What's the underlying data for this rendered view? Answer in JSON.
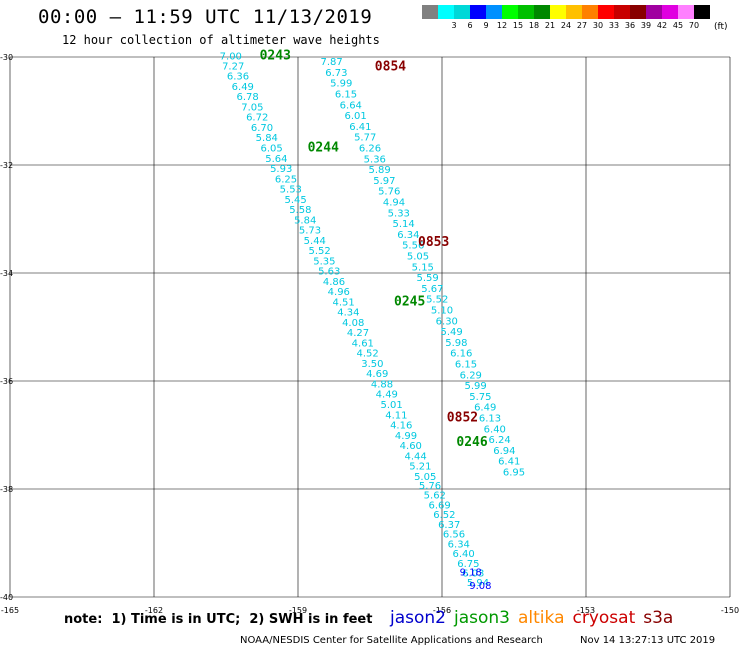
{
  "header": {
    "title": "00:00 – 11:59 UTC 11/13/2019",
    "subtitle": "12 hour collection of altimeter wave heights"
  },
  "scale": {
    "unit": "(ft)",
    "bins": [
      {
        "color": "#808080",
        "label": ""
      },
      {
        "color": "#00ffff",
        "label": "3"
      },
      {
        "color": "#00d8d8",
        "label": "6"
      },
      {
        "color": "#0000ff",
        "label": "9"
      },
      {
        "color": "#0090ff",
        "label": "12"
      },
      {
        "color": "#00ff00",
        "label": "15"
      },
      {
        "color": "#00c000",
        "label": "18"
      },
      {
        "color": "#008800",
        "label": "21"
      },
      {
        "color": "#ffff00",
        "label": "24"
      },
      {
        "color": "#ffc000",
        "label": "27"
      },
      {
        "color": "#ff8000",
        "label": "30"
      },
      {
        "color": "#ff0000",
        "label": "33"
      },
      {
        "color": "#c80000",
        "label": "36"
      },
      {
        "color": "#880000",
        "label": "39"
      },
      {
        "color": "#a000a0",
        "label": "42"
      },
      {
        "color": "#e000e0",
        "label": "45"
      },
      {
        "color": "#ff80ff",
        "label": "70"
      },
      {
        "color": "#000000",
        "label": ""
      }
    ]
  },
  "note": "note:  1) Time is in UTC;  2) SWH is in feet",
  "satellites": [
    {
      "name": "jason2",
      "color": "#0000cc"
    },
    {
      "name": "jason3",
      "color": "#009900"
    },
    {
      "name": "altika",
      "color": "#ff8800"
    },
    {
      "name": "cryosat",
      "color": "#cc0000"
    },
    {
      "name": "s3a",
      "color": "#880000"
    }
  ],
  "footer": {
    "credit": "NOAA/NESDIS Center for Satellite Applications and Research",
    "timestamp": "Nov 14 13:27:13 UTC 2019"
  },
  "chart_data": {
    "type": "scatter",
    "xlim": [
      -165,
      -150
    ],
    "ylim": [
      -40,
      -30
    ],
    "xticks": [
      "-165",
      "-162",
      "-159",
      "-156",
      "-153",
      "-150"
    ],
    "yticks": [
      "-30",
      "-32",
      "-34",
      "-36",
      "-38",
      "-40"
    ],
    "grid": true,
    "series": [
      {
        "name": "jason3",
        "color": "#00c8e0",
        "points": [
          {
            "lon": -160.4,
            "lat": -30.05,
            "v": "7.00"
          },
          {
            "lon": -160.35,
            "lat": -30.23,
            "v": "7.27"
          },
          {
            "lon": -160.25,
            "lat": -30.42,
            "v": "6.36"
          },
          {
            "lon": -160.15,
            "lat": -30.61,
            "v": "6.49"
          },
          {
            "lon": -160.05,
            "lat": -30.8,
            "v": "6.78"
          },
          {
            "lon": -159.95,
            "lat": -30.99,
            "v": "7.05"
          },
          {
            "lon": -159.85,
            "lat": -31.18,
            "v": "6.72"
          },
          {
            "lon": -159.75,
            "lat": -31.37,
            "v": "6.70"
          },
          {
            "lon": -159.65,
            "lat": -31.56,
            "v": "5.84"
          },
          {
            "lon": -159.55,
            "lat": -31.75,
            "v": "6.05"
          },
          {
            "lon": -159.45,
            "lat": -31.94,
            "v": "5.64"
          },
          {
            "lon": -159.35,
            "lat": -32.13,
            "v": "5.93"
          },
          {
            "lon": -159.25,
            "lat": -32.32,
            "v": "6.25"
          },
          {
            "lon": -159.15,
            "lat": -32.51,
            "v": "5.53"
          },
          {
            "lon": -159.05,
            "lat": -32.7,
            "v": "5.45"
          },
          {
            "lon": -158.95,
            "lat": -32.89,
            "v": "5.58"
          },
          {
            "lon": -158.85,
            "lat": -33.08,
            "v": "5.84"
          },
          {
            "lon": -158.75,
            "lat": -33.27,
            "v": "5.73"
          },
          {
            "lon": -158.65,
            "lat": -33.46,
            "v": "5.44"
          },
          {
            "lon": -158.55,
            "lat": -33.65,
            "v": "5.52"
          },
          {
            "lon": -158.45,
            "lat": -33.84,
            "v": "5.35"
          },
          {
            "lon": -158.35,
            "lat": -34.03,
            "v": "5.63"
          },
          {
            "lon": -158.25,
            "lat": -34.22,
            "v": "4.86"
          },
          {
            "lon": -158.15,
            "lat": -34.41,
            "v": "4.96"
          },
          {
            "lon": -158.05,
            "lat": -34.6,
            "v": "4.51"
          },
          {
            "lon": -157.95,
            "lat": -34.79,
            "v": "4.34"
          },
          {
            "lon": -157.85,
            "lat": -34.98,
            "v": "4.08"
          },
          {
            "lon": -157.75,
            "lat": -35.17,
            "v": "4.27"
          },
          {
            "lon": -157.65,
            "lat": -35.36,
            "v": "4.61"
          },
          {
            "lon": -157.55,
            "lat": -35.55,
            "v": "4.52"
          },
          {
            "lon": -157.45,
            "lat": -35.74,
            "v": "3.50"
          },
          {
            "lon": -157.35,
            "lat": -35.93,
            "v": "4.69"
          },
          {
            "lon": -157.25,
            "lat": -36.12,
            "v": "4.88"
          },
          {
            "lon": -157.15,
            "lat": -36.31,
            "v": "4.49"
          },
          {
            "lon": -157.05,
            "lat": -36.5,
            "v": "5.01"
          },
          {
            "lon": -156.95,
            "lat": -36.69,
            "v": "4.11"
          },
          {
            "lon": -156.85,
            "lat": -36.88,
            "v": "4.16"
          },
          {
            "lon": -156.75,
            "lat": -37.07,
            "v": "4.99"
          },
          {
            "lon": -156.65,
            "lat": -37.26,
            "v": "4.60"
          },
          {
            "lon": -156.55,
            "lat": -37.45,
            "v": "4.44"
          },
          {
            "lon": -156.45,
            "lat": -37.64,
            "v": "5.21"
          },
          {
            "lon": -156.35,
            "lat": -37.83,
            "v": "5.05"
          },
          {
            "lon": -156.25,
            "lat": -38.0,
            "v": "5.76"
          },
          {
            "lon": -156.15,
            "lat": -38.18,
            "v": "5.62"
          },
          {
            "lon": -156.05,
            "lat": -38.36,
            "v": "6.69"
          },
          {
            "lon": -155.95,
            "lat": -38.54,
            "v": "6.52"
          },
          {
            "lon": -155.85,
            "lat": -38.72,
            "v": "6.37"
          },
          {
            "lon": -155.75,
            "lat": -38.9,
            "v": "6.56"
          },
          {
            "lon": -155.65,
            "lat": -39.08,
            "v": "6.34"
          },
          {
            "lon": -155.55,
            "lat": -39.26,
            "v": "6.40"
          },
          {
            "lon": -155.45,
            "lat": -39.44,
            "v": "6.75"
          },
          {
            "lon": -155.35,
            "lat": -39.62,
            "v": "6.03"
          },
          {
            "lon": -155.25,
            "lat": -39.8,
            "v": "5.94"
          }
        ]
      },
      {
        "name": "cryosat",
        "color": "#00c8e0",
        "points": [
          {
            "lon": -158.3,
            "lat": -30.15,
            "v": "7.87"
          },
          {
            "lon": -158.2,
            "lat": -30.35,
            "v": "6.73"
          },
          {
            "lon": -158.1,
            "lat": -30.55,
            "v": "5.99"
          },
          {
            "lon": -158.0,
            "lat": -30.75,
            "v": "6.15"
          },
          {
            "lon": -157.9,
            "lat": -30.95,
            "v": "6.64"
          },
          {
            "lon": -157.8,
            "lat": -31.15,
            "v": "6.01"
          },
          {
            "lon": -157.7,
            "lat": -31.35,
            "v": "6.41"
          },
          {
            "lon": -157.6,
            "lat": -31.55,
            "v": "5.77"
          },
          {
            "lon": -157.5,
            "lat": -31.75,
            "v": "6.26"
          },
          {
            "lon": -157.4,
            "lat": -31.95,
            "v": "5.36"
          },
          {
            "lon": -157.3,
            "lat": -32.15,
            "v": "5.89"
          },
          {
            "lon": -157.2,
            "lat": -32.35,
            "v": "5.97"
          },
          {
            "lon": -157.1,
            "lat": -32.55,
            "v": "5.76"
          },
          {
            "lon": -157.0,
            "lat": -32.75,
            "v": "4.94"
          },
          {
            "lon": -156.9,
            "lat": -32.95,
            "v": "5.33"
          },
          {
            "lon": -156.8,
            "lat": -33.15,
            "v": "5.14"
          },
          {
            "lon": -156.7,
            "lat": -33.35,
            "v": "6.34"
          },
          {
            "lon": -156.6,
            "lat": -33.55,
            "v": "5.56"
          },
          {
            "lon": -156.5,
            "lat": -33.75,
            "v": "5.05"
          },
          {
            "lon": -156.4,
            "lat": -33.95,
            "v": "5.15"
          },
          {
            "lon": -156.3,
            "lat": -34.15,
            "v": "5.59"
          },
          {
            "lon": -156.2,
            "lat": -34.35,
            "v": "5.67"
          },
          {
            "lon": -156.1,
            "lat": -34.55,
            "v": "5.52"
          },
          {
            "lon": -156.0,
            "lat": -34.75,
            "v": "5.10"
          },
          {
            "lon": -155.9,
            "lat": -34.95,
            "v": "6.30"
          },
          {
            "lon": -155.8,
            "lat": -35.15,
            "v": "5.49"
          },
          {
            "lon": -155.7,
            "lat": -35.35,
            "v": "5.98"
          },
          {
            "lon": -155.6,
            "lat": -35.55,
            "v": "6.16"
          },
          {
            "lon": -155.5,
            "lat": -35.75,
            "v": "6.15"
          },
          {
            "lon": -155.4,
            "lat": -35.95,
            "v": "6.29"
          },
          {
            "lon": -155.3,
            "lat": -36.15,
            "v": "5.99"
          },
          {
            "lon": -155.2,
            "lat": -36.35,
            "v": "5.75"
          },
          {
            "lon": -155.1,
            "lat": -36.55,
            "v": "6.49"
          },
          {
            "lon": -155.0,
            "lat": -36.75,
            "v": "6.13"
          },
          {
            "lon": -154.9,
            "lat": -36.95,
            "v": "6.40"
          },
          {
            "lon": -154.8,
            "lat": -37.15,
            "v": "6.24"
          },
          {
            "lon": -154.7,
            "lat": -37.35,
            "v": "6.94"
          },
          {
            "lon": -154.6,
            "lat": -37.55,
            "v": "6.41"
          },
          {
            "lon": -154.5,
            "lat": -37.75,
            "v": "6.95"
          }
        ]
      },
      {
        "name": "jason2",
        "color": "#0000ff",
        "points": [
          {
            "lon": -155.4,
            "lat": -39.6,
            "v": "9.18"
          },
          {
            "lon": -155.2,
            "lat": -39.85,
            "v": "9.08"
          }
        ]
      }
    ],
    "pass_labels": [
      {
        "text": "0243",
        "lon": -159.8,
        "lat": -30.05,
        "color": "#008800"
      },
      {
        "text": "0244",
        "lon": -158.8,
        "lat": -31.75,
        "color": "#008800"
      },
      {
        "text": "0245",
        "lon": -157.0,
        "lat": -34.6,
        "color": "#008800"
      },
      {
        "text": "0246",
        "lon": -155.7,
        "lat": -37.2,
        "color": "#008800"
      },
      {
        "text": "0854",
        "lon": -157.4,
        "lat": -30.25,
        "color": "#880000"
      },
      {
        "text": "0853",
        "lon": -156.5,
        "lat": -33.5,
        "color": "#880000"
      },
      {
        "text": "0852",
        "lon": -155.9,
        "lat": -36.75,
        "color": "#880000"
      }
    ]
  }
}
